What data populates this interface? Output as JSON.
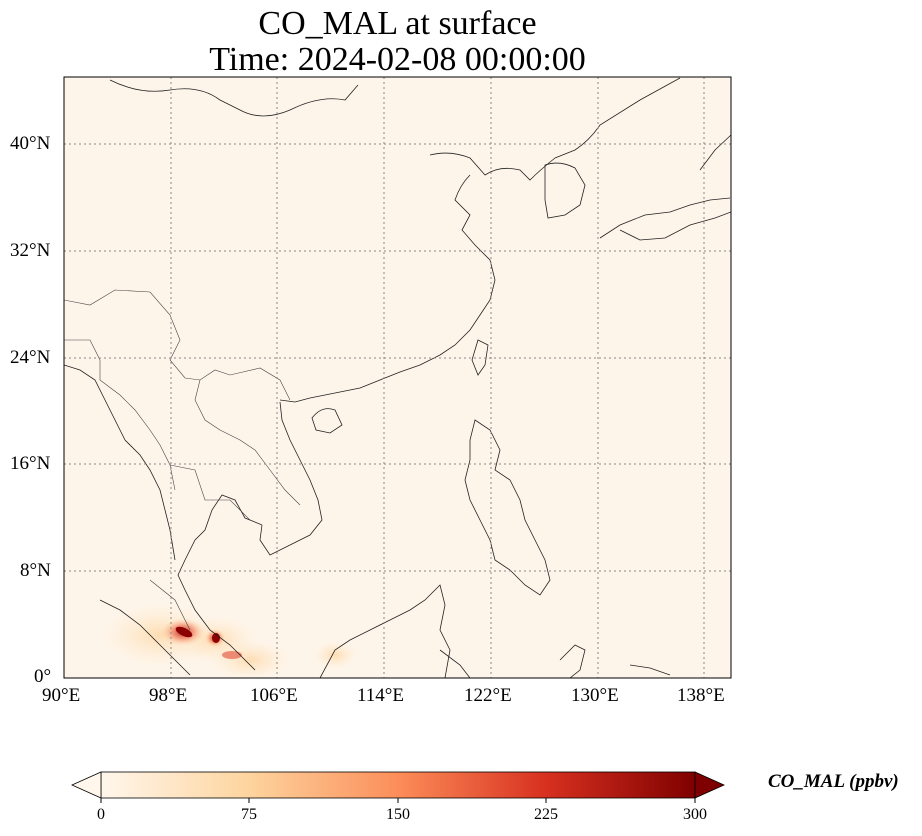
{
  "title": {
    "line1": "CO_MAL at surface",
    "line2": "Time: 2024-02-08 00:00:00"
  },
  "map": {
    "lon_range": [
      90,
      140
    ],
    "lat_range": [
      0,
      45
    ],
    "lon_ticks": [
      "90°E",
      "98°E",
      "106°E",
      "114°E",
      "122°E",
      "130°E",
      "138°E"
    ],
    "lat_ticks": [
      "0°",
      "8°N",
      "16°N",
      "24°N",
      "32°N",
      "40°N"
    ],
    "gridlines": "dotted",
    "background_color": "#fef5ea",
    "plume": {
      "location": "Strait of Malacca / Sumatra",
      "peak_value_ppbv": 300,
      "peak_color": "#7f0000"
    }
  },
  "colorbar": {
    "label": "CO_MAL (ppbv)",
    "ticks": [
      "0",
      "75",
      "150",
      "225",
      "300"
    ],
    "colormap": "OrRd",
    "extend": "both",
    "range": [
      0,
      300
    ]
  }
}
